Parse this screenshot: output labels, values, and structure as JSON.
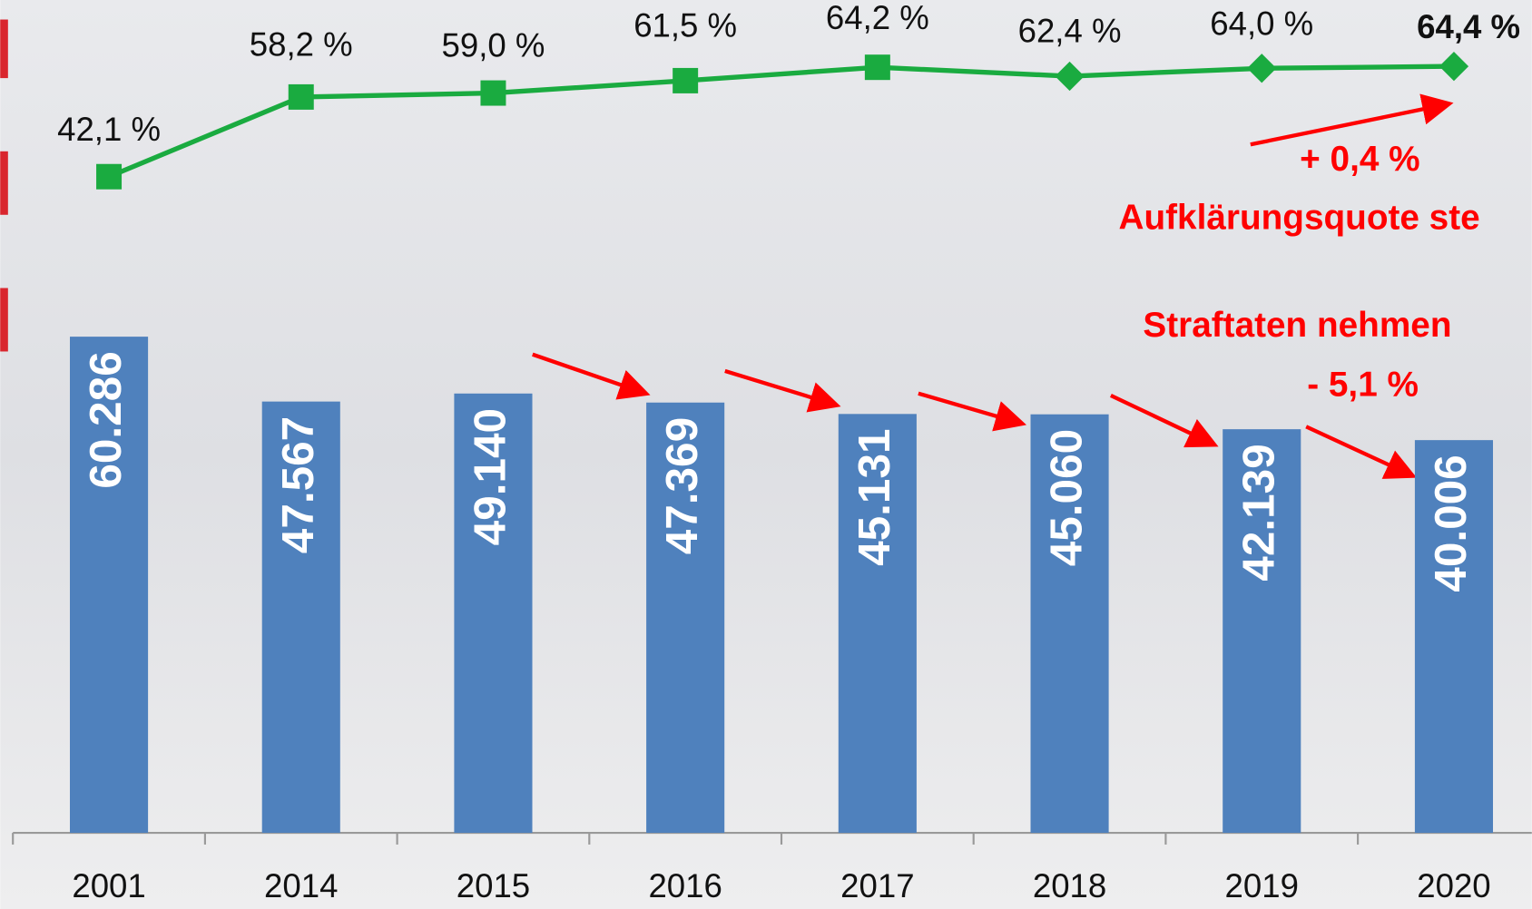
{
  "chart_data": {
    "type": "bar_line",
    "categories": [
      "2001",
      "2014",
      "2015",
      "2016",
      "2017",
      "2018",
      "2019",
      "2020"
    ],
    "bars": {
      "color": "#4f81bd",
      "values": [
        60286,
        47567,
        49140,
        47369,
        45131,
        45060,
        42139,
        40006
      ],
      "value_labels": [
        "60.286",
        "47.567",
        "49.140",
        "47.369",
        "45.131",
        "45.060",
        "42.139",
        "40.006"
      ]
    },
    "line": {
      "color": "#1aab40",
      "values": [
        42.1,
        58.2,
        59.0,
        61.5,
        64.2,
        62.4,
        64.0,
        64.4
      ],
      "value_labels": [
        "42,1 %",
        "58,2 %",
        "59,0 %",
        "61,5 %",
        "64,2 %",
        "62,4 %",
        "64,0 %",
        "64,4 %"
      ]
    },
    "ylim": [
      -37000,
      126300
    ],
    "y2lim": [
      -90.5,
      77.8
    ],
    "annotations": [
      "+ 0,4 %",
      "Aufklärungsquote ste",
      "Straftaten nehmen",
      "- 5,1 %"
    ]
  }
}
